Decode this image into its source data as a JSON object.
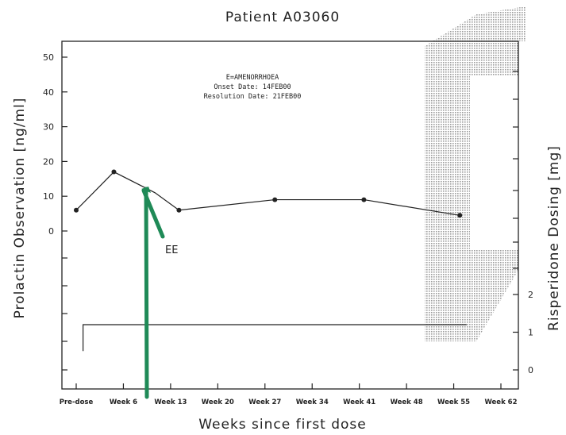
{
  "chart_data": {
    "type": "line",
    "title": "Patient A03060",
    "xlabel": "Weeks since first dose",
    "ylabel": "Prolactin Observation [ng/ml]",
    "y2label": "Risperidone Dosing [mg]",
    "x_ticks": [
      "Pre-dose",
      "Week 6",
      "Week 13",
      "Week 20",
      "Week 27",
      "Week 34",
      "Week 41",
      "Week 48",
      "Week 55",
      "Week 62"
    ],
    "y_ticks": [
      0,
      10,
      20,
      30,
      40,
      50
    ],
    "y2_ticks": [
      0,
      1,
      2
    ],
    "ylim": [
      0,
      50
    ],
    "y2lim": [
      0,
      2
    ],
    "grid": false,
    "series": [
      {
        "points": [
          {
            "x": 0,
            "y": 6
          },
          {
            "x": 5.5,
            "y": 17
          },
          {
            "x": 11.5,
            "y": 11
          },
          {
            "x": 15,
            "y": 6
          },
          {
            "x": 29,
            "y": 9
          },
          {
            "x": 42,
            "y": 9
          },
          {
            "x": 56,
            "y": 4.5
          }
        ]
      },
      {
        "step": [
          {
            "x": 1,
            "y": 0.5
          },
          {
            "x": 1,
            "y": 1.2
          },
          {
            "x": 57,
            "y": 1.2
          }
        ]
      }
    ],
    "annotation": {
      "lines": [
        "E=AMENORRHOEA",
        "Onset Date: 14FEB00",
        "Resolution Date: 21FEB00"
      ],
      "marker": "EE"
    },
    "colors": {
      "line": "#222222",
      "marker_green": "#1f8a57",
      "shade": "#c8c8c8"
    }
  }
}
